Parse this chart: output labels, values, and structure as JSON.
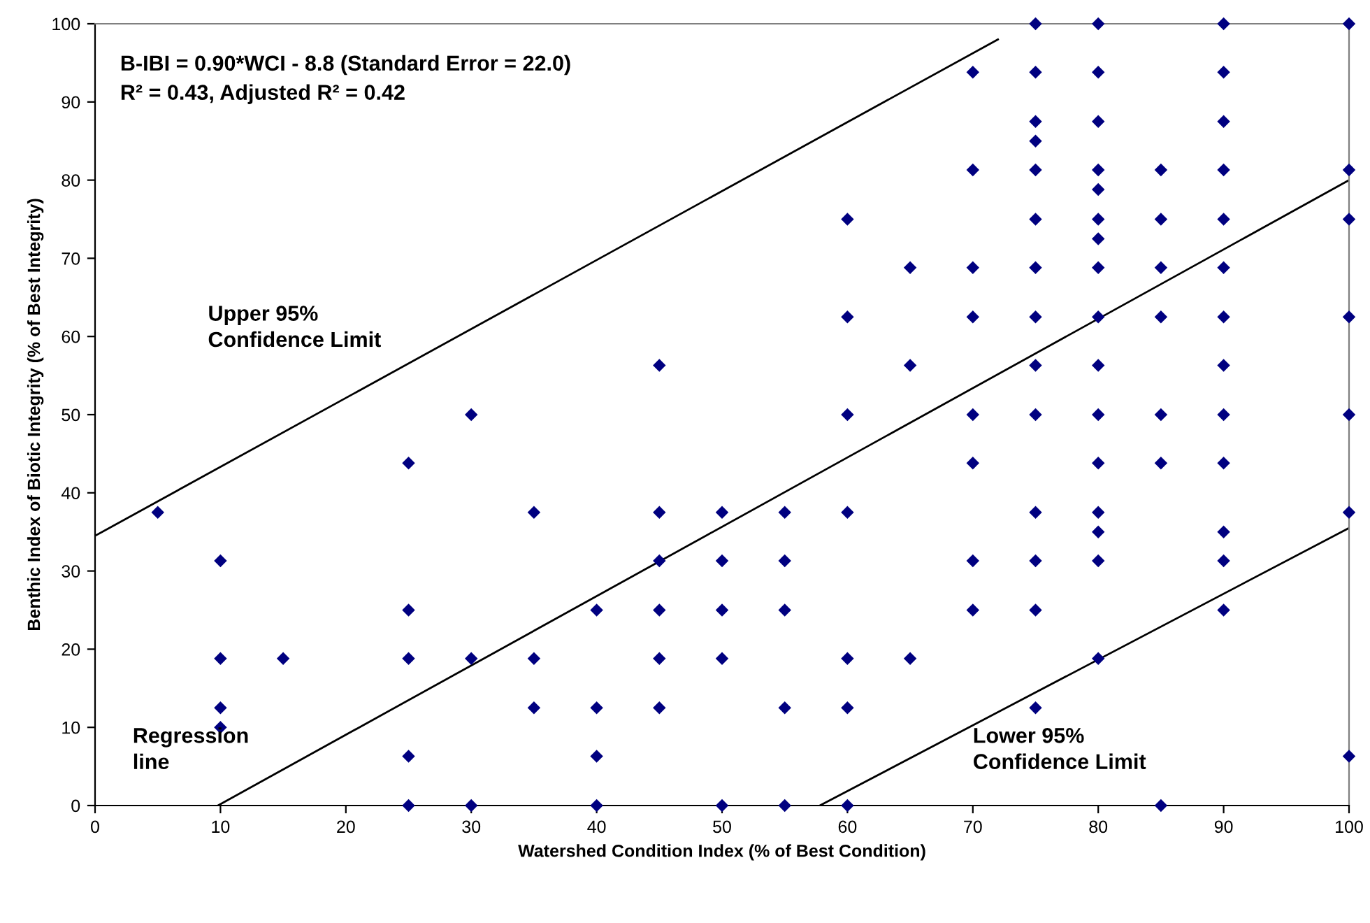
{
  "chart_data": {
    "type": "scatter",
    "xlabel": "Watershed Condition Index (% of Best Condition)",
    "ylabel": "Benthic Index of Biotic Integrity (% of Best Integrity)",
    "xlim": [
      0,
      100
    ],
    "ylim": [
      0,
      100
    ],
    "xticks": [
      0,
      10,
      20,
      30,
      40,
      50,
      60,
      70,
      80,
      90,
      100
    ],
    "yticks": [
      0,
      10,
      20,
      30,
      40,
      50,
      60,
      70,
      80,
      90,
      100
    ],
    "grid": false,
    "legend": false,
    "annotations": [
      "B-IBI = 0.90*WCI - 8.8 (Standard Error = 22.0)\nR² = 0.43, Adjusted R² = 0.42",
      "Upper 95%\nConfidence Limit",
      "Regression\nline",
      "Lower 95%\nConfidence Limit"
    ],
    "series": [
      {
        "marker": "diamond",
        "color": "#000080",
        "x": [
          5,
          10,
          10,
          10,
          10,
          15,
          25,
          25,
          25,
          25,
          25,
          30,
          30,
          30,
          35,
          35,
          35,
          40,
          40,
          40,
          40,
          45,
          45,
          45,
          45,
          45,
          45,
          50,
          50,
          50,
          50,
          50,
          55,
          55,
          55,
          55,
          55,
          60,
          60,
          60,
          60,
          60,
          60,
          60,
          65,
          65,
          65,
          70,
          70,
          70,
          70,
          70,
          70,
          70,
          70,
          75,
          75,
          75,
          75,
          75,
          75,
          75,
          75,
          75,
          75,
          75,
          75,
          75,
          75,
          80,
          80,
          80,
          80,
          80,
          80,
          80,
          80,
          80,
          80,
          80,
          80,
          80,
          80,
          80,
          80,
          85,
          85,
          85,
          85,
          85,
          85,
          85,
          90,
          90,
          90,
          90,
          90,
          90,
          90,
          90,
          90,
          90,
          90,
          90,
          90,
          100,
          100,
          100,
          100,
          100,
          100,
          100
        ],
        "values": [
          37.5,
          31.3,
          18.8,
          12.5,
          10,
          18.8,
          43.8,
          25,
          18.8,
          6.3,
          0,
          50,
          18.8,
          0,
          37.5,
          18.8,
          12.5,
          25,
          12.5,
          6.3,
          0,
          56.3,
          37.5,
          31.3,
          25,
          18.8,
          12.5,
          37.5,
          31.3,
          25,
          18.8,
          0,
          37.5,
          31.3,
          25,
          12.5,
          0,
          75,
          62.5,
          50,
          37.5,
          18.8,
          12.5,
          0,
          68.8,
          56.3,
          18.8,
          93.8,
          81.3,
          68.8,
          62.5,
          50,
          43.8,
          31.3,
          25,
          100,
          93.8,
          87.5,
          85,
          81.3,
          75,
          68.8,
          62.5,
          56.3,
          50,
          37.5,
          31.3,
          25,
          12.5,
          100,
          93.8,
          87.5,
          81.3,
          78.8,
          75,
          72.5,
          68.8,
          62.5,
          56.3,
          50,
          43.8,
          37.5,
          35,
          31.3,
          18.8,
          81.3,
          75,
          68.8,
          62.5,
          50,
          43.8,
          0,
          100,
          93.8,
          87.5,
          81.3,
          75,
          68.8,
          62.5,
          56.3,
          50,
          43.8,
          35,
          31.3,
          25,
          100,
          81.3,
          75,
          62.5,
          50,
          37.5,
          6.3
        ]
      },
      {
        "type": "line",
        "color": "#000000",
        "marker": "none",
        "line_style": "solid",
        "x": [
          0,
          72
        ],
        "values": [
          34.5,
          98
        ]
      },
      {
        "type": "line",
        "color": "#000000",
        "marker": "none",
        "line_style": "solid",
        "x": [
          9.8,
          100
        ],
        "values": [
          0,
          80
        ]
      },
      {
        "type": "line",
        "color": "#000000",
        "marker": "none",
        "line_style": "solid",
        "x": [
          57.8,
          100
        ],
        "values": [
          0,
          35.5
        ]
      }
    ]
  }
}
